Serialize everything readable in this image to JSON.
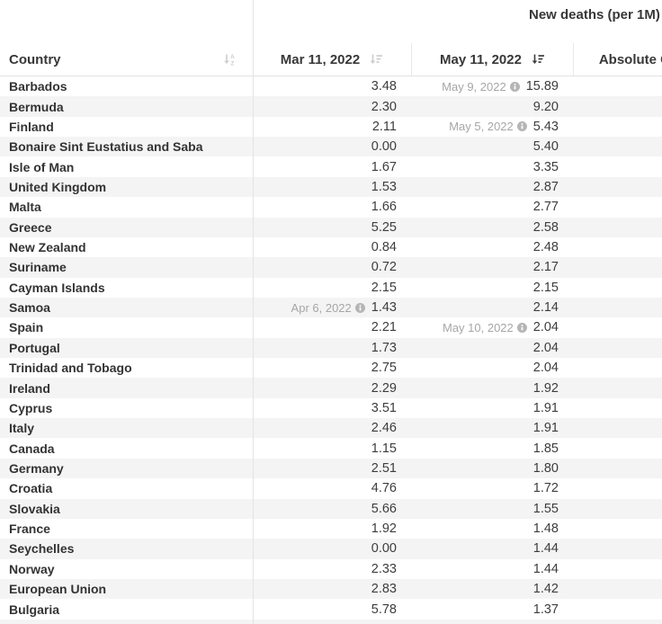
{
  "group_header": "New deaths (per 1M)",
  "columns": {
    "country": {
      "label": "Country",
      "sort_icon": "sort-alpha-down-icon",
      "sort_active": false
    },
    "mar": {
      "label": "Mar 11, 2022",
      "sort_icon": "sort-amount-down-icon",
      "sort_active": false
    },
    "may": {
      "label": "May 11, 2022",
      "sort_icon": "sort-amount-down-icon",
      "sort_active": true
    },
    "abs": {
      "label": "Absolute Change"
    }
  },
  "colors": {
    "row_stripe": "#f4f4f4",
    "divider": "#e3e3e3",
    "annotation_text": "#a6a6a6",
    "sort_inactive": "#cdcdcd",
    "sort_active": "#3d3d3d",
    "info_icon": "#b5b5b5"
  },
  "rows": [
    {
      "country": "Barbados",
      "mar": "3.48",
      "may": "15.89",
      "may_note": "May 9, 2022"
    },
    {
      "country": "Bermuda",
      "mar": "2.30",
      "may": "9.20"
    },
    {
      "country": "Finland",
      "mar": "2.11",
      "may": "5.43",
      "may_note": "May 5, 2022"
    },
    {
      "country": "Bonaire Sint Eustatius and Saba",
      "mar": "0.00",
      "may": "5.40"
    },
    {
      "country": "Isle of Man",
      "mar": "1.67",
      "may": "3.35"
    },
    {
      "country": "United Kingdom",
      "mar": "1.53",
      "may": "2.87"
    },
    {
      "country": "Malta",
      "mar": "1.66",
      "may": "2.77"
    },
    {
      "country": "Greece",
      "mar": "5.25",
      "may": "2.58"
    },
    {
      "country": "New Zealand",
      "mar": "0.84",
      "may": "2.48"
    },
    {
      "country": "Suriname",
      "mar": "0.72",
      "may": "2.17"
    },
    {
      "country": "Cayman Islands",
      "mar": "2.15",
      "may": "2.15"
    },
    {
      "country": "Samoa",
      "mar": "1.43",
      "mar_note": "Apr 6, 2022",
      "may": "2.14"
    },
    {
      "country": "Spain",
      "mar": "2.21",
      "may": "2.04",
      "may_note": "May 10, 2022"
    },
    {
      "country": "Portugal",
      "mar": "1.73",
      "may": "2.04"
    },
    {
      "country": "Trinidad and Tobago",
      "mar": "2.75",
      "may": "2.04"
    },
    {
      "country": "Ireland",
      "mar": "2.29",
      "may": "1.92"
    },
    {
      "country": "Cyprus",
      "mar": "3.51",
      "may": "1.91"
    },
    {
      "country": "Italy",
      "mar": "2.46",
      "may": "1.91"
    },
    {
      "country": "Canada",
      "mar": "1.15",
      "may": "1.85"
    },
    {
      "country": "Germany",
      "mar": "2.51",
      "may": "1.80"
    },
    {
      "country": "Croatia",
      "mar": "4.76",
      "may": "1.72"
    },
    {
      "country": "Slovakia",
      "mar": "5.66",
      "may": "1.55"
    },
    {
      "country": "France",
      "mar": "1.92",
      "may": "1.48"
    },
    {
      "country": "Seychelles",
      "mar": "0.00",
      "may": "1.44"
    },
    {
      "country": "Norway",
      "mar": "2.33",
      "may": "1.44"
    },
    {
      "country": "European Union",
      "mar": "2.83",
      "may": "1.42"
    },
    {
      "country": "Bulgaria",
      "mar": "5.78",
      "may": "1.37"
    }
  ]
}
